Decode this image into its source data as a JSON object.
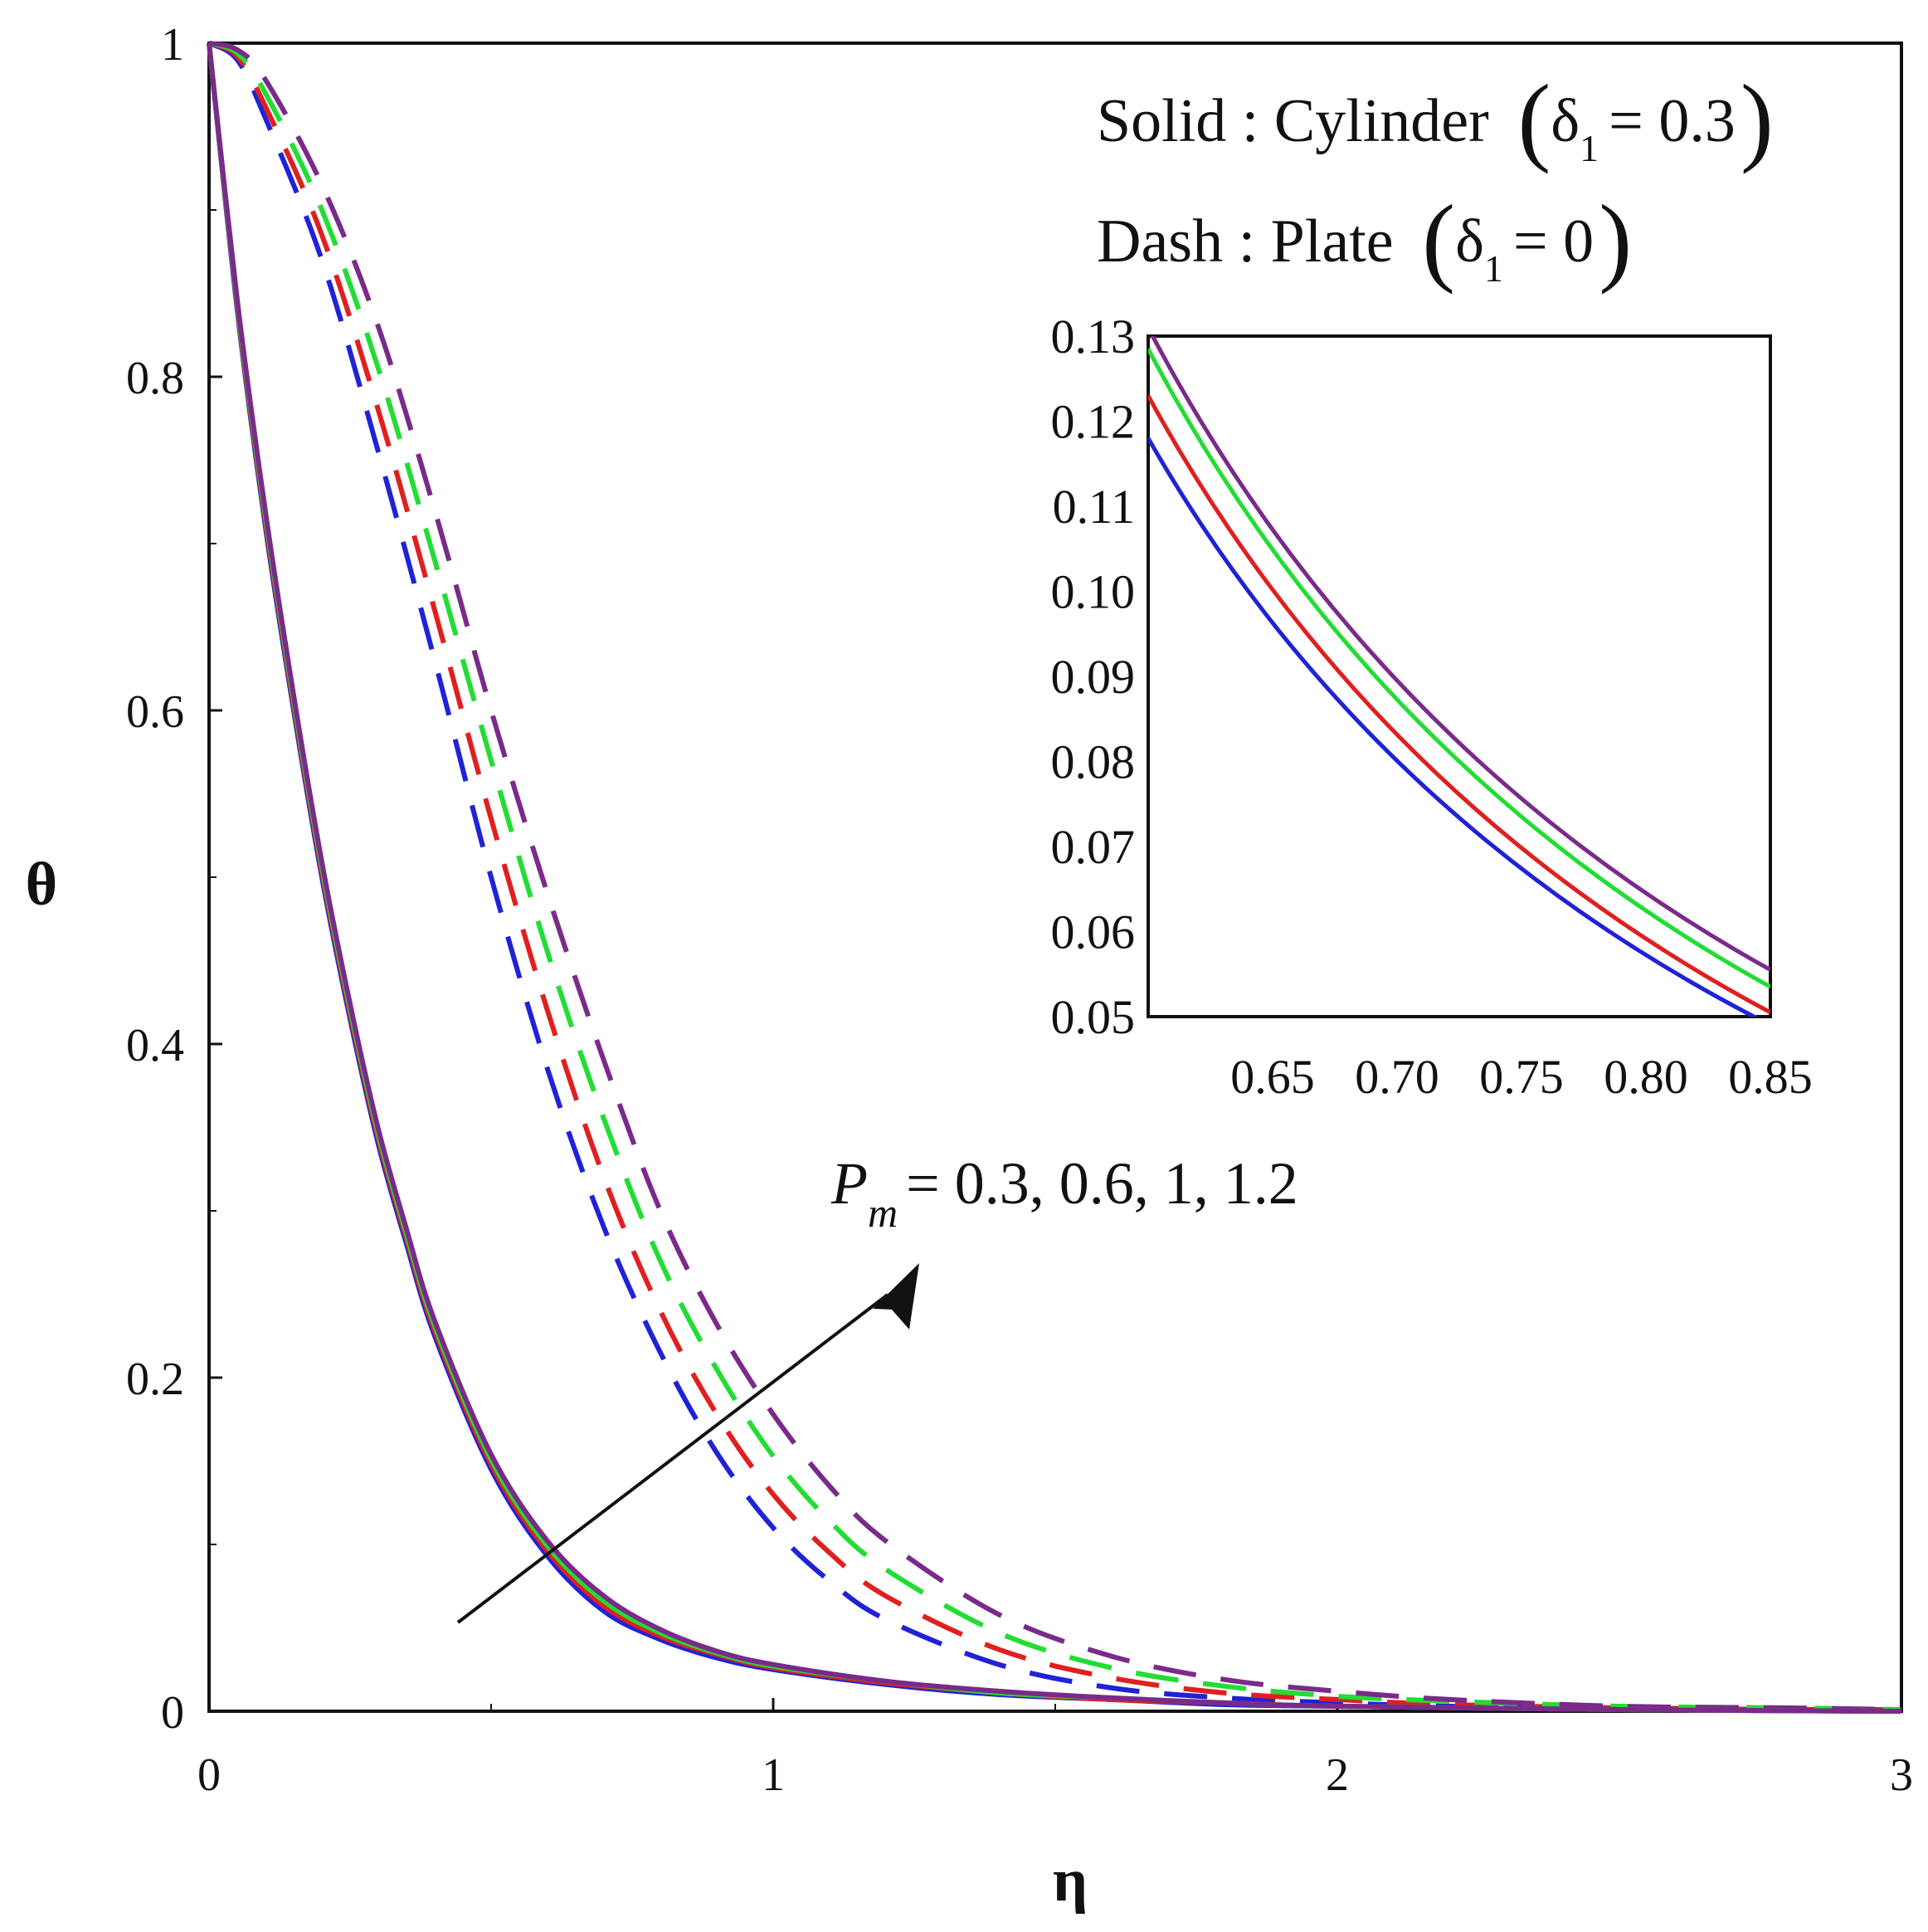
{
  "chart_data": {
    "type": "line",
    "xlabel": "η",
    "ylabel": "θ",
    "xlim": [
      0,
      3
    ],
    "ylim": [
      0,
      1
    ],
    "x_ticks": [
      "0",
      "1",
      "2",
      "3"
    ],
    "y_ticks": [
      "0",
      "0.2",
      "0.4",
      "0.6",
      "0.8",
      "1"
    ],
    "legend": {
      "line1": {
        "prefix": "Solid : Cylinder",
        "sym": "δ",
        "sub": "1",
        "rel": "= 0.3"
      },
      "line2": {
        "prefix": "Dash : Plate",
        "sym": "δ",
        "sub": "1",
        "rel": "= 0"
      },
      "placement": "top-right"
    },
    "annotation": {
      "sym": "P",
      "sub": "m",
      "text": "= 0.3, 0.6, 1, 1.2",
      "arrow": "increasing"
    },
    "series_colors": [
      "#1f22d6",
      "#e01f1f",
      "#22dd33",
      "#7a2a8a"
    ],
    "series": [
      {
        "name": "P_m = 0.3",
        "style": "dashed",
        "color": "#1f22d6",
        "x": [
          0,
          0.05,
          0.1,
          0.2,
          0.3,
          0.4,
          0.5,
          0.6,
          0.7,
          0.8,
          0.9,
          1.0,
          1.1,
          1.2,
          1.4,
          1.6,
          1.8,
          2.0,
          2.2,
          2.5,
          2.8,
          3.0
        ],
        "y": [
          1.0,
          0.99,
          0.955,
          0.87,
          0.755,
          0.63,
          0.5,
          0.385,
          0.29,
          0.215,
          0.155,
          0.11,
          0.078,
          0.055,
          0.028,
          0.014,
          0.008,
          0.005,
          0.003,
          0.002,
          0.001,
          0.001
        ]
      },
      {
        "name": "P_m = 0.6",
        "style": "dashed",
        "color": "#e01f1f",
        "x": [
          0,
          0.05,
          0.1,
          0.2,
          0.3,
          0.4,
          0.5,
          0.6,
          0.7,
          0.8,
          0.9,
          1.0,
          1.1,
          1.2,
          1.4,
          1.6,
          1.8,
          2.0,
          2.2,
          2.5,
          2.8,
          3.0
        ],
        "y": [
          1.0,
          0.992,
          0.962,
          0.885,
          0.78,
          0.66,
          0.535,
          0.42,
          0.32,
          0.24,
          0.178,
          0.13,
          0.095,
          0.069,
          0.037,
          0.02,
          0.011,
          0.007,
          0.004,
          0.002,
          0.001,
          0.001
        ]
      },
      {
        "name": "P_m = 1",
        "style": "dashed",
        "color": "#22dd33",
        "x": [
          0,
          0.05,
          0.1,
          0.2,
          0.3,
          0.4,
          0.5,
          0.6,
          0.7,
          0.8,
          0.9,
          1.0,
          1.1,
          1.2,
          1.4,
          1.6,
          1.8,
          2.0,
          2.2,
          2.5,
          2.8,
          3.0
        ],
        "y": [
          1.0,
          0.994,
          0.97,
          0.9,
          0.805,
          0.69,
          0.57,
          0.455,
          0.355,
          0.27,
          0.205,
          0.153,
          0.114,
          0.085,
          0.047,
          0.026,
          0.015,
          0.009,
          0.006,
          0.003,
          0.002,
          0.001
        ]
      },
      {
        "name": "P_m = 1.2",
        "style": "dashed",
        "color": "#7a2a8a",
        "x": [
          0,
          0.05,
          0.1,
          0.2,
          0.3,
          0.4,
          0.5,
          0.6,
          0.7,
          0.8,
          0.9,
          1.0,
          1.1,
          1.2,
          1.4,
          1.6,
          1.8,
          2.0,
          2.2,
          2.5,
          2.8,
          3.0
        ],
        "y": [
          1.0,
          0.996,
          0.978,
          0.915,
          0.83,
          0.72,
          0.6,
          0.49,
          0.39,
          0.3,
          0.232,
          0.178,
          0.135,
          0.102,
          0.058,
          0.033,
          0.019,
          0.012,
          0.007,
          0.003,
          0.002,
          0.001
        ]
      },
      {
        "name": "P_m = 0.3",
        "style": "solid",
        "color": "#1f22d6",
        "x": [
          0,
          0.05,
          0.1,
          0.15,
          0.2,
          0.25,
          0.3,
          0.35,
          0.4,
          0.5,
          0.6,
          0.7,
          0.8,
          0.9,
          1.0,
          1.2,
          1.4,
          1.6,
          1.8,
          2.0,
          2.5,
          3.0
        ],
        "y": [
          1.0,
          0.84,
          0.71,
          0.6,
          0.5,
          0.415,
          0.34,
          0.28,
          0.225,
          0.145,
          0.093,
          0.06,
          0.043,
          0.032,
          0.025,
          0.016,
          0.01,
          0.007,
          0.004,
          0.003,
          0.001,
          0.0
        ]
      },
      {
        "name": "P_m = 0.6",
        "style": "solid",
        "color": "#e01f1f",
        "x": [
          0,
          0.05,
          0.1,
          0.15,
          0.2,
          0.25,
          0.3,
          0.35,
          0.4,
          0.5,
          0.6,
          0.7,
          0.8,
          0.9,
          1.0,
          1.2,
          1.4,
          1.6,
          1.8,
          2.0,
          2.5,
          3.0
        ],
        "y": [
          1.0,
          0.842,
          0.713,
          0.603,
          0.503,
          0.418,
          0.343,
          0.283,
          0.228,
          0.148,
          0.096,
          0.063,
          0.045,
          0.034,
          0.026,
          0.017,
          0.011,
          0.007,
          0.005,
          0.003,
          0.001,
          0.0
        ]
      },
      {
        "name": "P_m = 1",
        "style": "solid",
        "color": "#22dd33",
        "x": [
          0,
          0.05,
          0.1,
          0.15,
          0.2,
          0.25,
          0.3,
          0.35,
          0.4,
          0.5,
          0.6,
          0.7,
          0.8,
          0.9,
          1.0,
          1.2,
          1.4,
          1.6,
          1.8,
          2.0,
          2.5,
          3.0
        ],
        "y": [
          1.0,
          0.844,
          0.716,
          0.606,
          0.506,
          0.421,
          0.346,
          0.286,
          0.231,
          0.151,
          0.099,
          0.066,
          0.047,
          0.035,
          0.027,
          0.018,
          0.011,
          0.008,
          0.005,
          0.003,
          0.001,
          0.0
        ]
      },
      {
        "name": "P_m = 1.2",
        "style": "solid",
        "color": "#7a2a8a",
        "x": [
          0,
          0.05,
          0.1,
          0.15,
          0.2,
          0.25,
          0.3,
          0.35,
          0.4,
          0.5,
          0.6,
          0.7,
          0.8,
          0.9,
          1.0,
          1.2,
          1.4,
          1.6,
          1.8,
          2.0,
          2.5,
          3.0
        ],
        "y": [
          1.0,
          0.846,
          0.719,
          0.609,
          0.509,
          0.424,
          0.349,
          0.289,
          0.234,
          0.154,
          0.102,
          0.069,
          0.049,
          0.036,
          0.028,
          0.018,
          0.012,
          0.008,
          0.005,
          0.003,
          0.001,
          0.0
        ]
      }
    ],
    "inset": {
      "xlim": [
        0.6,
        0.85
      ],
      "ylim": [
        0.05,
        0.13
      ],
      "x_ticks": [
        "0.65",
        "0.70",
        "0.75",
        "0.80",
        "0.85"
      ],
      "y_ticks": [
        "0.05",
        "0.06",
        "0.07",
        "0.08",
        "0.09",
        "0.10",
        "0.11",
        "0.12",
        "0.13"
      ],
      "series": [
        {
          "name": "P_m = 0.3",
          "color": "#1f22d6",
          "x": [
            0.6,
            0.85
          ],
          "y": [
            0.118,
            0.049
          ],
          "curvature": 0.15
        },
        {
          "name": "P_m = 0.6",
          "color": "#e01f1f",
          "x": [
            0.6,
            0.85
          ],
          "y": [
            0.123,
            0.0505
          ],
          "curvature": 0.15
        },
        {
          "name": "P_m = 1",
          "color": "#22dd33",
          "x": [
            0.6,
            0.85
          ],
          "y": [
            0.1285,
            0.0535
          ],
          "curvature": 0.15
        },
        {
          "name": "P_m = 1.2",
          "color": "#7a2a8a",
          "x": [
            0.6,
            0.85
          ],
          "y": [
            0.131,
            0.0555
          ],
          "curvature": 0.15
        }
      ]
    }
  }
}
